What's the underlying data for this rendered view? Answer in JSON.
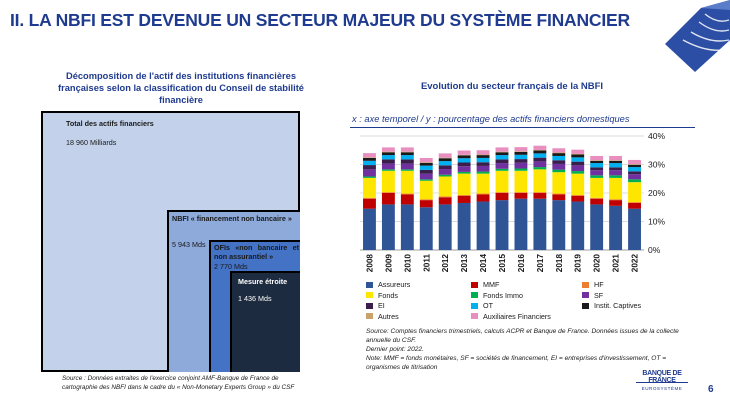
{
  "header": {
    "title": "II. LA NBFI EST DEVENUE UN SECTEUR MAJEUR DU SYSTÈME FINANCIER"
  },
  "left_panel": {
    "title": "Décomposition de l'actif des institutions financières françaises selon la classification du Conseil de stabilité financière",
    "treemap": {
      "total_label": "Total des actifs financiers",
      "total_value": "18 960 Milliards",
      "nbfi_label": "NBFI « financement non bancaire »",
      "nbfi_value": "5 943 Mds",
      "ofi_label": "OFIs «non bancaire et non assurantiel »",
      "ofi_value": "2 770 Mds",
      "narrow_label": "Mesure étroite",
      "narrow_value": "1 436 Mds"
    },
    "source": "Source : Données extraites de l'exercice conjoint AMF-Banque de France de cartographie des NBFI dans le cadre du « Non-Monetary Experts Group » du CSF"
  },
  "right_panel": {
    "title": "Evolution du secteur français de la NBFI",
    "axis_note": "x : axe temporel / y : pourcentage des actifs financiers domestiques",
    "source_lines": [
      "Source: Comptes financiers trimestriels, calculs ACPR et Banque de France. Données issues de la collecte",
      "annuelle du CSF.",
      "Dernier point: 2022.",
      "Note: MMF = fonds monétaires, SF = sociétés de financement, EI = entreprises d'investissement, OT =",
      "organismes de titrisation"
    ]
  },
  "chart_data": {
    "type": "bar",
    "stacked": true,
    "categories": [
      "2008",
      "2009",
      "2010",
      "2011",
      "2012",
      "2013",
      "2014",
      "2015",
      "2016",
      "2017",
      "2018",
      "2019",
      "2020",
      "2021",
      "2022"
    ],
    "ylim": [
      0,
      40
    ],
    "yticks": [
      "0%",
      "10%",
      "20%",
      "30%",
      "40%"
    ],
    "y_axis_side": "right",
    "gridlines": true,
    "series": [
      {
        "name": "Assureurs",
        "color": "#2f5597",
        "values": [
          14.5,
          16.0,
          16.0,
          15.0,
          16.0,
          16.5,
          17.0,
          17.5,
          18.0,
          18.0,
          17.5,
          17.0,
          16.0,
          15.5,
          14.5
        ]
      },
      {
        "name": "MMF",
        "color": "#c00000",
        "values": [
          3.5,
          4.0,
          3.5,
          2.5,
          2.5,
          2.5,
          2.5,
          2.5,
          2.0,
          2.0,
          2.0,
          2.0,
          2.0,
          2.0,
          2.0
        ]
      },
      {
        "name": "HF",
        "color": "#ed7d31",
        "values": [
          0.3,
          0.3,
          0.3,
          0.3,
          0.3,
          0.3,
          0.3,
          0.3,
          0.3,
          0.3,
          0.3,
          0.3,
          0.3,
          0.3,
          0.3
        ]
      },
      {
        "name": "Fonds",
        "color": "#ffe600",
        "values": [
          7.0,
          7.5,
          8.0,
          6.5,
          7.0,
          7.5,
          7.0,
          7.5,
          7.5,
          8.0,
          7.5,
          7.5,
          7.0,
          7.5,
          7.0
        ]
      },
      {
        "name": "Fonds Immo",
        "color": "#00b050",
        "values": [
          0.5,
          0.5,
          0.5,
          0.5,
          0.6,
          0.6,
          0.7,
          0.7,
          0.8,
          0.8,
          0.9,
          0.9,
          0.9,
          0.9,
          1.0
        ]
      },
      {
        "name": "SF",
        "color": "#7030a0",
        "values": [
          2.5,
          2.0,
          2.0,
          2.0,
          2.0,
          2.0,
          2.0,
          2.0,
          2.0,
          2.0,
          2.0,
          2.0,
          1.8,
          1.8,
          1.8
        ]
      },
      {
        "name": "EI",
        "color": "#3a1f4d",
        "values": [
          1.5,
          1.5,
          1.5,
          1.3,
          1.3,
          1.3,
          1.3,
          1.3,
          1.3,
          1.3,
          1.3,
          1.3,
          1.0,
          1.0,
          1.0
        ]
      },
      {
        "name": "OT",
        "color": "#00b0f0",
        "values": [
          1.5,
          1.5,
          1.5,
          1.5,
          1.5,
          1.5,
          1.5,
          1.5,
          1.5,
          1.5,
          1.5,
          1.5,
          1.5,
          1.5,
          1.5
        ]
      },
      {
        "name": "Instit. Captives",
        "color": "#1a1a1a",
        "values": [
          1.0,
          1.0,
          1.0,
          1.0,
          1.0,
          1.0,
          1.0,
          1.0,
          1.0,
          1.0,
          1.0,
          1.0,
          0.8,
          0.8,
          0.8
        ]
      },
      {
        "name": "Autres",
        "color": "#c9a36a",
        "values": [
          0.2,
          0.2,
          0.2,
          0.2,
          0.2,
          0.2,
          0.2,
          0.2,
          0.2,
          0.2,
          0.2,
          0.2,
          0.2,
          0.2,
          0.2
        ]
      },
      {
        "name": "Auxiliaires Financiers",
        "color": "#e88fc0",
        "values": [
          1.5,
          1.5,
          1.5,
          1.5,
          1.5,
          1.5,
          1.5,
          1.5,
          1.5,
          1.5,
          1.5,
          1.5,
          1.5,
          1.5,
          1.5
        ]
      }
    ]
  },
  "logo": {
    "name": "BANQUE DE FRANCE",
    "sub": "EUROSYSTÈME"
  },
  "page_number": "6",
  "colors": {
    "accent": "#1f3b8f",
    "treemap_total": "#c3d2ea",
    "treemap_nbfi": "#8daadb",
    "treemap_ofi": "#4472c4",
    "treemap_narrow": "#1d2b40"
  }
}
